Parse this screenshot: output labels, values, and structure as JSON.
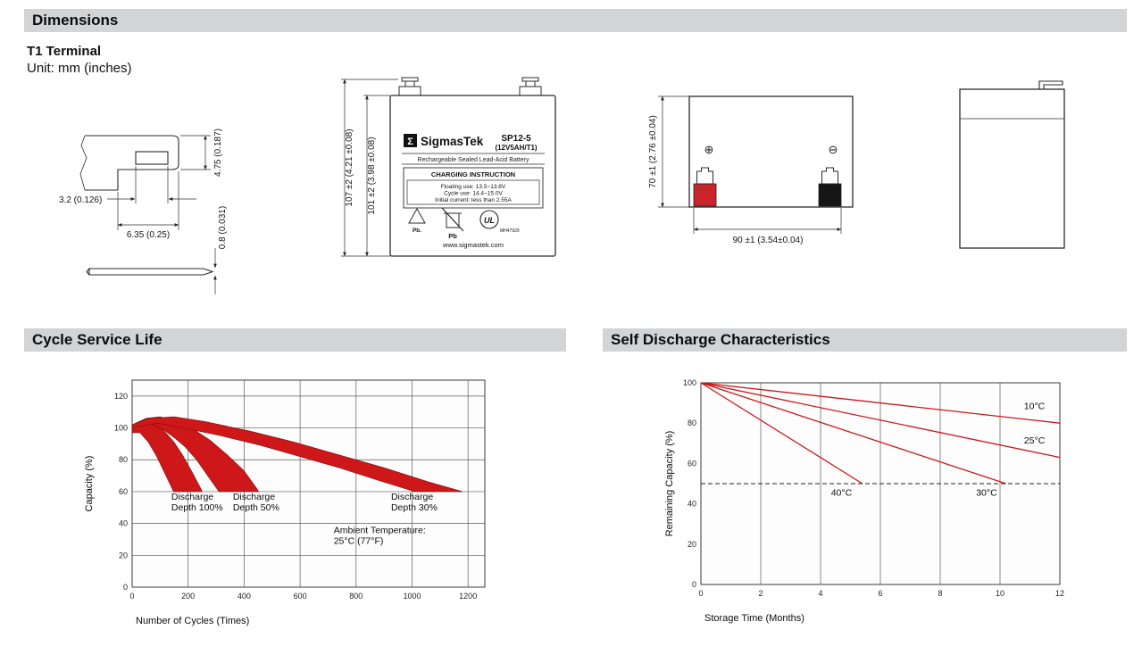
{
  "sections": {
    "dimensions": "Dimensions",
    "cycle_service_life": "Cycle Service Life",
    "self_discharge": "Self Discharge Characteristics"
  },
  "dimensions": {
    "subtitle": "T1 Terminal",
    "unit_note": "Unit: mm (inches)",
    "terminal_detail": {
      "dim_height": "4.75 (0.187)",
      "dim_slot_width": "3.2 (0.126)",
      "dim_tab_width": "6.35 (0.25)",
      "dim_thickness": "0.8 (0.031)"
    },
    "front_view": {
      "dim_overall_height": "107 ±2 (4.21 ±0.08)",
      "dim_case_height": "101 ±2 (3.98 ±0.08)",
      "label": {
        "logo_glyph": "Σ",
        "brand": "SigmasTek",
        "model": "SP12-5",
        "spec": "(12V5AH/T1)",
        "type_line": "Rechargeable Sealed Lead-Acid Battery",
        "charging_title": "CHARGING INSTRUCTION",
        "charging_line1": "Floating use: 13.5~13.8V",
        "charging_line2": "Cycle use: 14.4~15.0V",
        "charging_line3": "Initial current: less than 2.55A",
        "recycle_caption": "Pb.",
        "bin_caption": "Pb",
        "ul_text": "UL",
        "ul_code": "MH47929",
        "website": "www.sigmastek.com"
      }
    },
    "rear_view": {
      "dim_height": "70 ±1 (2.76 ±0.04)",
      "dim_width": "90 ±1 (3.54±0.04)",
      "positive_symbol": "⊕",
      "negative_symbol": "⊖"
    }
  },
  "chart_data": [
    {
      "id": "cycle-service-life",
      "type": "area",
      "title": "Cycle Service Life",
      "xlabel": "Number of Cycles (Times)",
      "ylabel": "Capacity (%)",
      "xlim": [
        0,
        1260
      ],
      "ylim": [
        0,
        130
      ],
      "xticks": [
        0,
        200,
        400,
        600,
        800,
        1000,
        1200
      ],
      "yticks": [
        0,
        20,
        40,
        60,
        80,
        100,
        120
      ],
      "grid": {
        "x": true,
        "y": true
      },
      "series_color": "#cd1719",
      "series": [
        {
          "name": "Discharge Depth 100%",
          "polygon": [
            [
              0,
              100
            ],
            [
              30,
              104
            ],
            [
              60,
              105
            ],
            [
              90,
              102
            ],
            [
              120,
              97
            ],
            [
              150,
              91
            ],
            [
              180,
              83
            ],
            [
              215,
              72
            ],
            [
              245,
              62
            ],
            [
              250,
              60
            ],
            [
              148,
              60
            ],
            [
              118,
              71
            ],
            [
              88,
              82
            ],
            [
              58,
              91
            ],
            [
              28,
              97
            ],
            [
              0,
              97
            ]
          ]
        },
        {
          "name": "Discharge Depth 50%",
          "polygon": [
            [
              0,
              102
            ],
            [
              50,
              106
            ],
            [
              100,
              107
            ],
            [
              160,
              104
            ],
            [
              220,
              99
            ],
            [
              280,
              92
            ],
            [
              340,
              83
            ],
            [
              400,
              73
            ],
            [
              445,
              62
            ],
            [
              452,
              60
            ],
            [
              310,
              60
            ],
            [
              270,
              70
            ],
            [
              230,
              80
            ],
            [
              190,
              88
            ],
            [
              150,
              94
            ],
            [
              110,
              99
            ],
            [
              60,
              103
            ],
            [
              0,
              100
            ]
          ]
        },
        {
          "name": "Discharge Depth 30%",
          "polygon": [
            [
              0,
              102
            ],
            [
              60,
              106
            ],
            [
              150,
              107
            ],
            [
              260,
              104
            ],
            [
              420,
              98
            ],
            [
              580,
              91
            ],
            [
              740,
              83
            ],
            [
              900,
              75
            ],
            [
              1060,
              66
            ],
            [
              1180,
              60
            ],
            [
              1010,
              60
            ],
            [
              880,
              67
            ],
            [
              740,
              75
            ],
            [
              600,
              82
            ],
            [
              460,
              89
            ],
            [
              320,
              95
            ],
            [
              180,
              100
            ],
            [
              90,
              103
            ],
            [
              0,
              100
            ]
          ]
        }
      ],
      "annotations": [
        {
          "lines": [
            "Discharge",
            "Depth 100%"
          ],
          "x": 140,
          "y": 55
        },
        {
          "lines": [
            "Discharge",
            "Depth 50%"
          ],
          "x": 360,
          "y": 55
        },
        {
          "lines": [
            "Discharge",
            "Depth 30%"
          ],
          "x": 925,
          "y": 55
        },
        {
          "lines": [
            "Ambient Temperature:",
            "25°C (77°F)"
          ],
          "x": 720,
          "y": 34
        }
      ]
    },
    {
      "id": "self-discharge",
      "type": "line",
      "title": "Self Discharge Characteristics",
      "xlabel": "Storage Time (Months)",
      "ylabel": "Remaining Capacity (%)",
      "xlim": [
        0,
        12
      ],
      "ylim": [
        0,
        100
      ],
      "xticks": [
        0,
        2,
        4,
        6,
        8,
        10,
        12
      ],
      "yticks": [
        0,
        20,
        40,
        60,
        80,
        100
      ],
      "grid": {
        "x": true,
        "y": false
      },
      "series_color": "#cd1719",
      "refline": {
        "y": 50,
        "style": "dashed"
      },
      "series": [
        {
          "name": "10°C",
          "points": [
            [
              0,
              100
            ],
            [
              12,
              80
            ]
          ]
        },
        {
          "name": "25°C",
          "points": [
            [
              0,
              100
            ],
            [
              12,
              63
            ]
          ]
        },
        {
          "name": "30°C",
          "points": [
            [
              0,
              100
            ],
            [
              10.2,
              50
            ]
          ]
        },
        {
          "name": "40°C",
          "points": [
            [
              0,
              100
            ],
            [
              5.4,
              50
            ]
          ]
        }
      ],
      "annotations": [
        {
          "lines": [
            "10°C"
          ],
          "x": 10.8,
          "y": 87
        },
        {
          "lines": [
            "25°C"
          ],
          "x": 10.8,
          "y": 70
        },
        {
          "lines": [
            "40°C"
          ],
          "x": 4.35,
          "y": 44
        },
        {
          "lines": [
            "30°C"
          ],
          "x": 9.2,
          "y": 44
        }
      ]
    }
  ]
}
